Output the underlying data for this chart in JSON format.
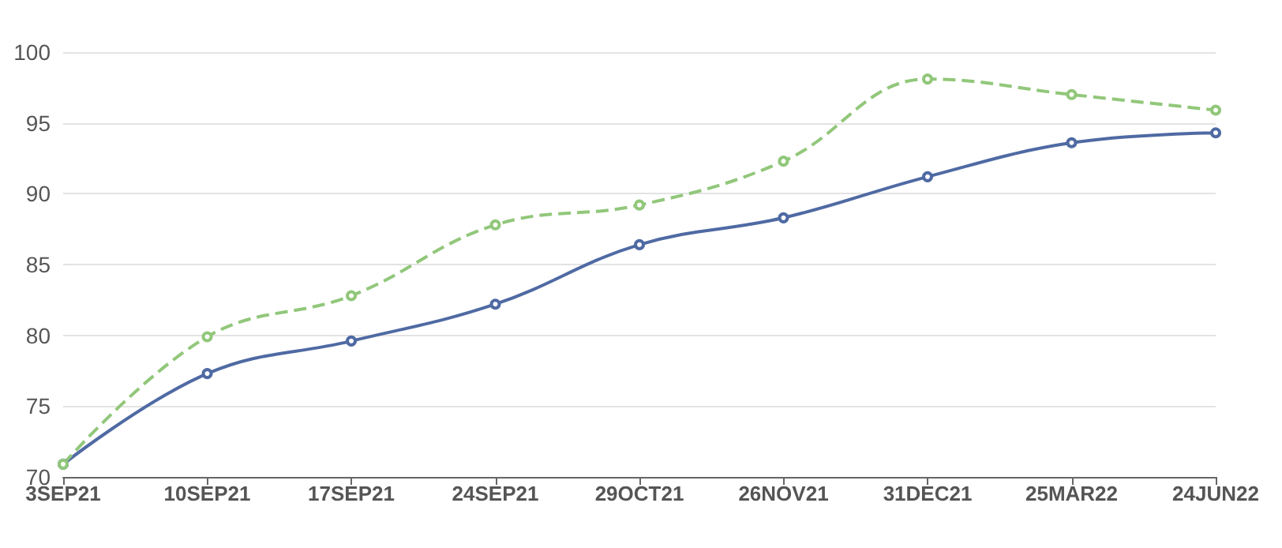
{
  "chart_data": {
    "type": "line",
    "categories": [
      "3SEP21",
      "10SEP21",
      "17SEP21",
      "24SEP21",
      "29OCT21",
      "26NOV21",
      "31DEC21",
      "25MAR22",
      "24JUN22"
    ],
    "series": [
      {
        "color": "#4f6aa3",
        "line_style": "solid",
        "values": [
          70.9,
          77.3,
          79.6,
          82.2,
          86.4,
          88.3,
          91.2,
          93.6,
          94.3
        ]
      },
      {
        "color": "#91c77a",
        "line_style": "dashed",
        "values": [
          70.9,
          79.9,
          82.8,
          87.8,
          89.2,
          92.3,
          98.1,
          97.0,
          95.9
        ]
      }
    ],
    "ylim": [
      70,
      100
    ],
    "yticks": [
      70,
      75,
      80,
      85,
      90,
      95,
      100
    ],
    "grid": "y",
    "marker": "circle"
  }
}
